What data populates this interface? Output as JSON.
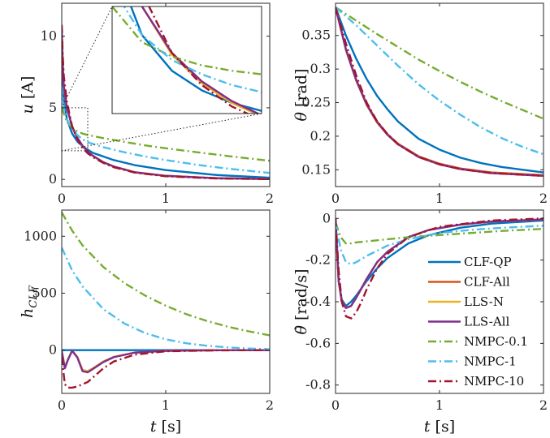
{
  "colors": {
    "CLF-QP": "#0072BD",
    "CLF-All": "#D95319",
    "LLS-N": "#EDB120",
    "LLS-All": "#7E2F8E",
    "NMPC-0.1": "#77AC30",
    "NMPC-1": "#4DBEEE",
    "NMPC-10": "#A2142F"
  },
  "chart_data": [
    {
      "id": "u",
      "type": "line",
      "ylabel": "u [A]",
      "xlabel": "",
      "xlim": [
        0,
        2
      ],
      "ylim": [
        -0.5,
        12.3
      ],
      "xticks": [
        0,
        1,
        2
      ],
      "yticks": [
        0,
        5,
        10
      ],
      "inset": {
        "xlim": [
          0,
          0.25
        ],
        "ylim": [
          2,
          5
        ],
        "from": "zoom-box"
      },
      "series": [
        {
          "name": "CLF-QP",
          "x": [
            0,
            0.02,
            0.05,
            0.1,
            0.15,
            0.2,
            0.3,
            0.5,
            0.7,
            1.0,
            1.5,
            2.0
          ],
          "y": [
            7.5,
            5.5,
            4.2,
            3.2,
            2.65,
            2.3,
            1.85,
            1.35,
            1.0,
            0.65,
            0.3,
            0.12
          ]
        },
        {
          "name": "CLF-All",
          "x": [
            0,
            0.01,
            0.02,
            0.05,
            0.1,
            0.15,
            0.2,
            0.25,
            0.3,
            0.4,
            0.5,
            0.7,
            1.0,
            1.5,
            2.0
          ],
          "y": [
            10.5,
            8.0,
            6.5,
            5.0,
            3.7,
            2.9,
            2.35,
            1.95,
            1.65,
            1.2,
            0.9,
            0.5,
            0.25,
            0.08,
            0.03
          ]
        },
        {
          "name": "LLS-N",
          "x": [
            0,
            0.01,
            0.02,
            0.05,
            0.1,
            0.15,
            0.2,
            0.25,
            0.3,
            0.4,
            0.5,
            0.7,
            1.0,
            1.5,
            2.0
          ],
          "y": [
            10.5,
            8.0,
            6.5,
            5.0,
            3.65,
            2.85,
            2.3,
            1.92,
            1.62,
            1.18,
            0.88,
            0.48,
            0.24,
            0.07,
            0.03
          ]
        },
        {
          "name": "LLS-All",
          "x": [
            0,
            0.01,
            0.02,
            0.05,
            0.1,
            0.15,
            0.2,
            0.25,
            0.3,
            0.4,
            0.5,
            0.7,
            1.0,
            1.5,
            2.0
          ],
          "y": [
            10.5,
            8.0,
            6.5,
            5.0,
            3.7,
            2.9,
            2.35,
            1.95,
            1.65,
            1.2,
            0.9,
            0.5,
            0.25,
            0.08,
            0.03
          ]
        },
        {
          "name": "NMPC-0.1",
          "x": [
            0,
            0.05,
            0.1,
            0.15,
            0.2,
            0.25,
            0.4,
            0.6,
            0.8,
            1.0,
            1.3,
            1.6,
            2.0
          ],
          "y": [
            5.0,
            4.0,
            3.6,
            3.35,
            3.2,
            3.1,
            2.88,
            2.62,
            2.38,
            2.17,
            1.9,
            1.63,
            1.3
          ]
        },
        {
          "name": "NMPC-1",
          "x": [
            0,
            0.02,
            0.05,
            0.1,
            0.15,
            0.2,
            0.25,
            0.4,
            0.6,
            0.8,
            1.0,
            1.3,
            1.6,
            2.0
          ],
          "y": [
            6.5,
            5.0,
            4.2,
            3.5,
            3.1,
            2.8,
            2.6,
            2.25,
            1.9,
            1.6,
            1.35,
            1.02,
            0.75,
            0.45
          ]
        },
        {
          "name": "NMPC-10",
          "x": [
            0,
            0.01,
            0.02,
            0.05,
            0.1,
            0.15,
            0.2,
            0.25,
            0.3,
            0.4,
            0.5,
            0.7,
            1.0,
            1.5,
            2.0
          ],
          "y": [
            10.8,
            8.6,
            7.2,
            5.4,
            3.7,
            2.8,
            2.2,
            1.82,
            1.55,
            1.15,
            0.85,
            0.48,
            0.22,
            0.06,
            0.02
          ]
        }
      ]
    },
    {
      "id": "theta",
      "type": "line",
      "ylabel": "θ [rad]",
      "xlabel": "",
      "xlim": [
        0,
        2
      ],
      "ylim": [
        0.125,
        0.398
      ],
      "xticks": [
        0,
        1,
        2
      ],
      "yticks": [
        0.15,
        0.2,
        0.25,
        0.3,
        0.35
      ],
      "yticklabels": [
        "0.15",
        "0.2",
        "0.25",
        "0.3",
        "0.35"
      ],
      "series": [
        {
          "name": "CLF-QP",
          "x": [
            0,
            0.1,
            0.2,
            0.3,
            0.4,
            0.5,
            0.6,
            0.8,
            1.0,
            1.2,
            1.4,
            1.6,
            1.8,
            2.0
          ],
          "y": [
            0.392,
            0.35,
            0.315,
            0.285,
            0.26,
            0.24,
            0.222,
            0.196,
            0.18,
            0.168,
            0.16,
            0.154,
            0.15,
            0.146
          ]
        },
        {
          "name": "CLF-All",
          "x": [
            0,
            0.1,
            0.2,
            0.3,
            0.4,
            0.5,
            0.6,
            0.8,
            1.0,
            1.2,
            1.5,
            2.0
          ],
          "y": [
            0.392,
            0.33,
            0.284,
            0.248,
            0.222,
            0.203,
            0.189,
            0.17,
            0.159,
            0.152,
            0.146,
            0.142
          ]
        },
        {
          "name": "LLS-N",
          "x": [
            0,
            0.1,
            0.2,
            0.3,
            0.4,
            0.5,
            0.6,
            0.8,
            1.0,
            1.2,
            1.5,
            2.0
          ],
          "y": [
            0.392,
            0.328,
            0.282,
            0.246,
            0.22,
            0.202,
            0.188,
            0.169,
            0.158,
            0.151,
            0.145,
            0.141
          ]
        },
        {
          "name": "LLS-All",
          "x": [
            0,
            0.1,
            0.2,
            0.3,
            0.4,
            0.5,
            0.6,
            0.8,
            1.0,
            1.2,
            1.5,
            2.0
          ],
          "y": [
            0.392,
            0.329,
            0.283,
            0.247,
            0.221,
            0.202,
            0.188,
            0.169,
            0.158,
            0.151,
            0.145,
            0.141
          ]
        },
        {
          "name": "NMPC-0.1",
          "x": [
            0,
            0.2,
            0.4,
            0.6,
            0.8,
            1.0,
            1.2,
            1.4,
            1.6,
            1.8,
            2.0
          ],
          "y": [
            0.392,
            0.372,
            0.352,
            0.333,
            0.314,
            0.297,
            0.281,
            0.266,
            0.252,
            0.239,
            0.226
          ]
        },
        {
          "name": "NMPC-1",
          "x": [
            0,
            0.2,
            0.4,
            0.6,
            0.8,
            1.0,
            1.2,
            1.4,
            1.6,
            1.8,
            2.0
          ],
          "y": [
            0.392,
            0.365,
            0.335,
            0.305,
            0.277,
            0.253,
            0.232,
            0.213,
            0.197,
            0.184,
            0.173
          ]
        },
        {
          "name": "NMPC-10",
          "x": [
            0,
            0.1,
            0.2,
            0.3,
            0.4,
            0.5,
            0.6,
            0.8,
            1.0,
            1.2,
            1.5,
            2.0
          ],
          "y": [
            0.392,
            0.338,
            0.29,
            0.25,
            0.222,
            0.203,
            0.188,
            0.169,
            0.158,
            0.151,
            0.145,
            0.141
          ]
        }
      ]
    },
    {
      "id": "hclf",
      "type": "line",
      "ylabel": "hCLF",
      "xlabel": "t [s]",
      "xlim": [
        0,
        2
      ],
      "ylim": [
        -380,
        1230
      ],
      "xticks": [
        0,
        1,
        2
      ],
      "yticks": [
        0,
        500,
        1000
      ],
      "series": [
        {
          "name": "CLF-QP",
          "x": [
            0,
            2
          ],
          "y": [
            0,
            0
          ]
        },
        {
          "name": "CLF-All",
          "x": [
            0,
            0.03,
            0.06,
            0.1,
            0.15,
            0.2,
            0.25,
            0.3,
            0.4,
            0.5,
            0.7,
            1.0,
            1.5,
            2.0
          ],
          "y": [
            -10,
            -150,
            -80,
            -5,
            -60,
            -175,
            -185,
            -160,
            -100,
            -60,
            -22,
            -6,
            -1,
            0
          ]
        },
        {
          "name": "LLS-N",
          "x": [
            0,
            0.03,
            0.06,
            0.1,
            0.15,
            0.2,
            0.25,
            0.3,
            0.4,
            0.5,
            0.7,
            1.0,
            1.5,
            2.0
          ],
          "y": [
            -10,
            -150,
            -80,
            -5,
            -60,
            -175,
            -185,
            -160,
            -100,
            -60,
            -22,
            -6,
            -1,
            0
          ]
        },
        {
          "name": "LLS-All",
          "x": [
            0,
            0.03,
            0.06,
            0.1,
            0.15,
            0.2,
            0.25,
            0.3,
            0.4,
            0.5,
            0.7,
            1.0,
            1.5,
            2.0
          ],
          "y": [
            -10,
            -160,
            -85,
            -5,
            -65,
            -185,
            -195,
            -165,
            -105,
            -62,
            -22,
            -6,
            -1,
            0
          ]
        },
        {
          "name": "NMPC-0.1",
          "x": [
            0,
            0.1,
            0.2,
            0.4,
            0.6,
            0.8,
            1.0,
            1.2,
            1.4,
            1.6,
            1.8,
            2.0
          ],
          "y": [
            1210,
            1050,
            920,
            730,
            590,
            480,
            390,
            315,
            255,
            205,
            165,
            130
          ]
        },
        {
          "name": "NMPC-1",
          "x": [
            0,
            0.1,
            0.2,
            0.4,
            0.6,
            0.8,
            1.0,
            1.2,
            1.4,
            1.6,
            1.8,
            2.0
          ],
          "y": [
            900,
            700,
            560,
            360,
            235,
            150,
            95,
            60,
            38,
            24,
            14,
            8
          ]
        },
        {
          "name": "NMPC-10",
          "x": [
            0,
            0.03,
            0.06,
            0.1,
            0.15,
            0.2,
            0.25,
            0.3,
            0.35,
            0.4,
            0.5,
            0.7,
            1.0,
            1.5,
            2.0
          ],
          "y": [
            -60,
            -300,
            -330,
            -330,
            -320,
            -300,
            -280,
            -240,
            -200,
            -160,
            -100,
            -40,
            -10,
            -2,
            0
          ]
        }
      ]
    },
    {
      "id": "thetadot",
      "type": "line",
      "ylabel": "θ̇ [rad/s]",
      "xlabel": "t [s]",
      "xlim": [
        0,
        2
      ],
      "ylim": [
        -0.84,
        0.04
      ],
      "xticks": [
        0,
        1,
        2
      ],
      "yticks": [
        0,
        -0.2,
        -0.4,
        -0.6,
        -0.8
      ],
      "yticklabels": [
        "0",
        "-0.2",
        "-0.4",
        "-0.6",
        "-0.8"
      ],
      "legend": "right",
      "series": [
        {
          "name": "CLF-QP",
          "x": [
            0,
            0.03,
            0.06,
            0.1,
            0.15,
            0.2,
            0.3,
            0.4,
            0.5,
            0.7,
            0.9,
            1.2,
            1.5,
            2.0
          ],
          "y": [
            0,
            -0.3,
            -0.39,
            -0.42,
            -0.4,
            -0.37,
            -0.3,
            -0.24,
            -0.19,
            -0.12,
            -0.08,
            -0.045,
            -0.025,
            -0.01
          ]
        },
        {
          "name": "CLF-All",
          "x": [
            0,
            0.03,
            0.06,
            0.1,
            0.15,
            0.2,
            0.3,
            0.4,
            0.5,
            0.7,
            0.9,
            1.2,
            1.5,
            2.0
          ],
          "y": [
            0,
            -0.3,
            -0.4,
            -0.43,
            -0.42,
            -0.38,
            -0.29,
            -0.21,
            -0.16,
            -0.09,
            -0.055,
            -0.03,
            -0.015,
            -0.005
          ]
        },
        {
          "name": "LLS-N",
          "x": [
            0,
            0.03,
            0.06,
            0.1,
            0.15,
            0.2,
            0.3,
            0.4,
            0.5,
            0.7,
            0.9,
            1.2,
            1.5,
            2.0
          ],
          "y": [
            0,
            -0.3,
            -0.4,
            -0.43,
            -0.42,
            -0.38,
            -0.29,
            -0.21,
            -0.16,
            -0.09,
            -0.055,
            -0.03,
            -0.015,
            -0.005
          ]
        },
        {
          "name": "LLS-All",
          "x": [
            0,
            0.03,
            0.06,
            0.1,
            0.15,
            0.2,
            0.3,
            0.4,
            0.5,
            0.7,
            0.9,
            1.2,
            1.5,
            2.0
          ],
          "y": [
            0,
            -0.3,
            -0.4,
            -0.43,
            -0.42,
            -0.38,
            -0.29,
            -0.21,
            -0.16,
            -0.09,
            -0.055,
            -0.03,
            -0.015,
            -0.005
          ]
        },
        {
          "name": "NMPC-0.1",
          "x": [
            0,
            0.05,
            0.1,
            0.15,
            0.2,
            0.3,
            0.5,
            0.7,
            1.0,
            1.3,
            1.6,
            2.0
          ],
          "y": [
            -0.02,
            -0.09,
            -0.12,
            -0.12,
            -0.115,
            -0.11,
            -0.1,
            -0.09,
            -0.08,
            -0.07,
            -0.06,
            -0.05
          ]
        },
        {
          "name": "NMPC-1",
          "x": [
            0,
            0.05,
            0.1,
            0.15,
            0.2,
            0.3,
            0.5,
            0.7,
            1.0,
            1.3,
            1.6,
            2.0
          ],
          "y": [
            -0.02,
            -0.15,
            -0.21,
            -0.22,
            -0.21,
            -0.18,
            -0.13,
            -0.1,
            -0.07,
            -0.055,
            -0.045,
            -0.035
          ]
        },
        {
          "name": "NMPC-10",
          "x": [
            0,
            0.03,
            0.06,
            0.1,
            0.15,
            0.2,
            0.25,
            0.3,
            0.4,
            0.5,
            0.7,
            1.0,
            1.5,
            2.0
          ],
          "y": [
            0,
            -0.25,
            -0.4,
            -0.47,
            -0.48,
            -0.45,
            -0.4,
            -0.34,
            -0.24,
            -0.17,
            -0.09,
            -0.04,
            -0.01,
            0
          ]
        }
      ]
    }
  ]
}
